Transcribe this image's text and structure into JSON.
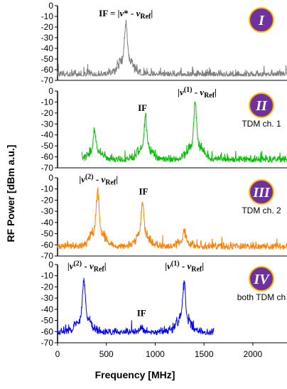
{
  "chart_data": {
    "type": "line",
    "xlabel": "Frequency [MHz]",
    "ylabel": "RF Power [dBm a.u.]",
    "xlim": [
      0,
      2350
    ],
    "x_ticks": [
      "0",
      "500",
      "1000",
      "1500",
      "2000"
    ],
    "x_tick_values": [
      0,
      500,
      1000,
      1500,
      2000
    ],
    "ylim": [
      -70,
      0
    ],
    "y_ticks": [
      "0",
      "-10",
      "-20",
      "-30",
      "-40",
      "-50",
      "-60",
      "-70"
    ],
    "y_tick_values": [
      0,
      -10,
      -20,
      -30,
      -40,
      -50,
      -60,
      -70
    ],
    "badge_color": "#7030a0",
    "badge_ring": "#ffc000",
    "panels": [
      {
        "roman": "I",
        "color": "#7f7f7f",
        "x_range": [
          0,
          2350
        ],
        "noise_floor": -66,
        "peaks": [
          {
            "x": 700,
            "y": -15
          }
        ],
        "annotations": [
          {
            "segments": [
              [
                "IF = |",
                "n"
              ],
              [
                "ν",
                "i"
              ],
              [
                "* - ",
                "n"
              ],
              [
                "ν",
                "i"
              ],
              [
                "Ref",
                "s"
              ],
              [
                "|",
                "n"
              ]
            ],
            "x": 700,
            "y": -10
          }
        ],
        "channel_label": ""
      },
      {
        "roman": "II",
        "color": "#00c000",
        "x_range": [
          250,
          2350
        ],
        "noise_floor": -65,
        "peaks": [
          {
            "x": 380,
            "y": -36
          },
          {
            "x": 900,
            "y": -23
          },
          {
            "x": 1410,
            "y": -10
          }
        ],
        "annotations": [
          {
            "segments": [
              [
                "IF",
                "n"
              ]
            ],
            "x": 870,
            "y": -18
          },
          {
            "segments": [
              [
                "|",
                "n"
              ],
              [
                "ν",
                "i"
              ],
              [
                "(1)",
                "p"
              ],
              [
                " - ",
                "n"
              ],
              [
                "ν",
                "i"
              ],
              [
                "Ref",
                "s"
              ],
              [
                "|",
                "n"
              ]
            ],
            "x": 1430,
            "y": -4
          }
        ],
        "channel_label": "TDM ch. 1"
      },
      {
        "roman": "III",
        "color": "#ff7f00",
        "x_range": [
          0,
          2350
        ],
        "noise_floor": -64,
        "peaks": [
          {
            "x": 410,
            "y": -10
          },
          {
            "x": 870,
            "y": -22
          },
          {
            "x": 1300,
            "y": -47
          }
        ],
        "annotations": [
          {
            "segments": [
              [
                "|",
                "n"
              ],
              [
                "ν",
                "i"
              ],
              [
                "(2)",
                "p"
              ],
              [
                " - ",
                "n"
              ],
              [
                "ν",
                "i"
              ],
              [
                "Ref",
                "s"
              ],
              [
                "|",
                "n"
              ]
            ],
            "x": 420,
            "y": -4
          },
          {
            "segments": [
              [
                "IF",
                "n"
              ]
            ],
            "x": 880,
            "y": -15
          }
        ],
        "channel_label": "TDM ch. 2"
      },
      {
        "roman": "IV",
        "color": "#0000ff",
        "x_range": [
          0,
          1600
        ],
        "noise_floor": -63,
        "peaks": [
          {
            "x": 270,
            "y": -13
          },
          {
            "x": 860,
            "y": -57
          },
          {
            "x": 1295,
            "y": -15
          }
        ],
        "annotations": [
          {
            "segments": [
              [
                "|",
                "n"
              ],
              [
                "ν",
                "i"
              ],
              [
                "(2)",
                "p"
              ],
              [
                " - ",
                "n"
              ],
              [
                "ν",
                "i"
              ],
              [
                "Ref",
                "s"
              ],
              [
                "|",
                "n"
              ]
            ],
            "x": 300,
            "y": -4
          },
          {
            "segments": [
              [
                "IF",
                "n"
              ]
            ],
            "x": 860,
            "y": -46
          },
          {
            "segments": [
              [
                "|",
                "n"
              ],
              [
                "ν",
                "i"
              ],
              [
                "(1)",
                "p"
              ],
              [
                " - ",
                "n"
              ],
              [
                "ν",
                "i"
              ],
              [
                "Ref",
                "s"
              ],
              [
                "|",
                "n"
              ]
            ],
            "x": 1300,
            "y": -4
          }
        ],
        "channel_label": "both TDM ch"
      }
    ]
  }
}
